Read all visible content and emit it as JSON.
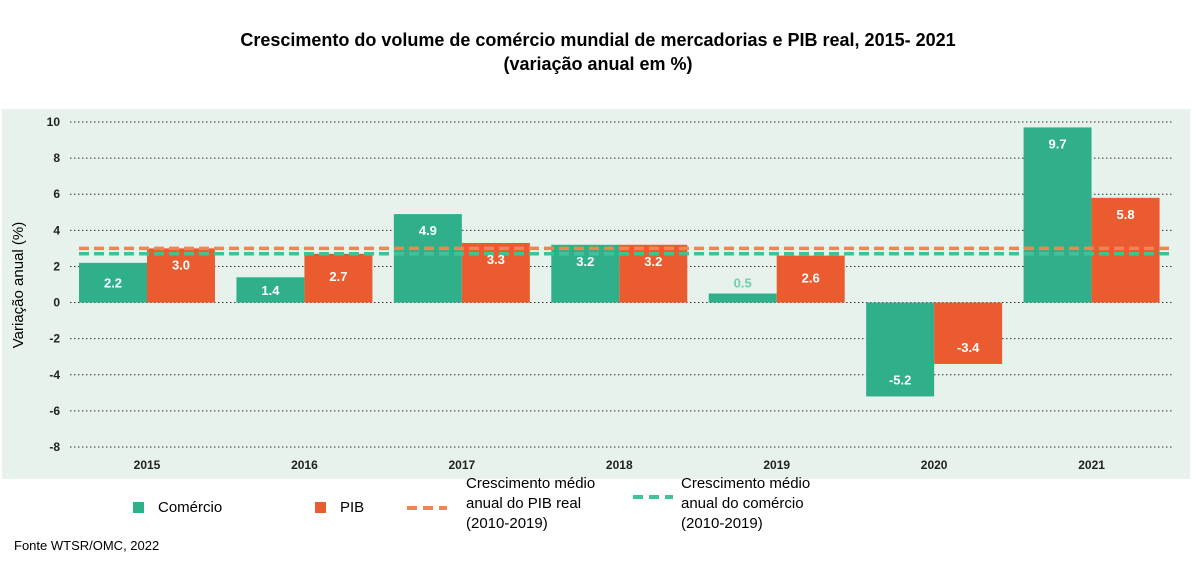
{
  "title_line1": "Crescimento do volume de comércio mundial de mercadorias e PIB real, 2015- 2021",
  "title_line2": "(variação anual em %)",
  "source": "Fonte WTSR/OMC, 2022",
  "legend": {
    "comercio": "Comércio",
    "pib": "PIB",
    "avg_pib": [
      "Crescimento médio",
      "anual do PIB real",
      "(2010-2019)"
    ],
    "avg_comercio": [
      "Crescimento médio",
      "anual do comércio",
      "(2010-2019)"
    ]
  },
  "colors": {
    "comercio": "#2fb08a",
    "pib": "#ea5c2f",
    "avg_pib": "#f08454",
    "avg_comercio": "#3cc39a",
    "background": "#e7f2ec"
  },
  "chart_data": {
    "type": "bar",
    "title": "Crescimento do volume de comércio mundial de mercadorias e PIB real, 2015- 2021",
    "subtitle": "(variação anual em %)",
    "xlabel": "",
    "ylabel": "Variação anual (%)",
    "categories": [
      "2015",
      "2016",
      "2017",
      "2018",
      "2019",
      "2020",
      "2021"
    ],
    "series": [
      {
        "name": "Comércio",
        "values": [
          2.2,
          1.4,
          4.9,
          3.2,
          0.5,
          -5.2,
          9.7
        ]
      },
      {
        "name": "PIB",
        "values": [
          3.0,
          2.7,
          3.3,
          3.2,
          2.6,
          -3.4,
          5.8
        ]
      }
    ],
    "reference_lines": [
      {
        "name": "Crescimento médio anual do PIB real (2010-2019)",
        "value": 3.0
      },
      {
        "name": "Crescimento médio anual do comércio (2010-2019)",
        "value": 2.7
      }
    ],
    "ylim": [
      -8,
      10
    ],
    "yticks": [
      10,
      8,
      6,
      4,
      2,
      0,
      -2,
      -4,
      -6,
      -8
    ],
    "grid": true,
    "legend_position": "bottom"
  }
}
